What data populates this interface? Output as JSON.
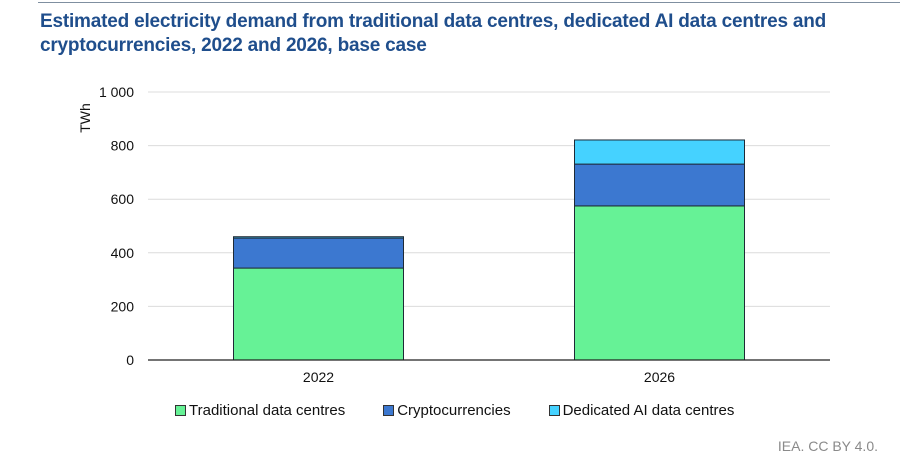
{
  "chart_data": {
    "type": "bar",
    "stacked": true,
    "title": "Estimated electricity demand from traditional data centres, dedicated AI data centres and cryptocurrencies, 2022 and 2026, base case",
    "xlabel": "",
    "ylabel": "TWh",
    "ylim": [
      0,
      1000
    ],
    "yticks": [
      0,
      200,
      400,
      600,
      800,
      1000
    ],
    "ytick_labels": [
      "0",
      "200",
      "400",
      "600",
      "800",
      "1 000"
    ],
    "categories": [
      "2022",
      "2026"
    ],
    "series": [
      {
        "name": "Traditional data centres",
        "color": "#66f296",
        "values": [
          343,
          575
        ]
      },
      {
        "name": "Cryptocurrencies",
        "color": "#3c78d0",
        "values": [
          112,
          156
        ]
      },
      {
        "name": "Dedicated AI data centres",
        "color": "#45d2ff",
        "values": [
          5,
          90
        ]
      }
    ],
    "grid": true,
    "legend": "bottom"
  },
  "source": "IEA. CC BY 4.0."
}
